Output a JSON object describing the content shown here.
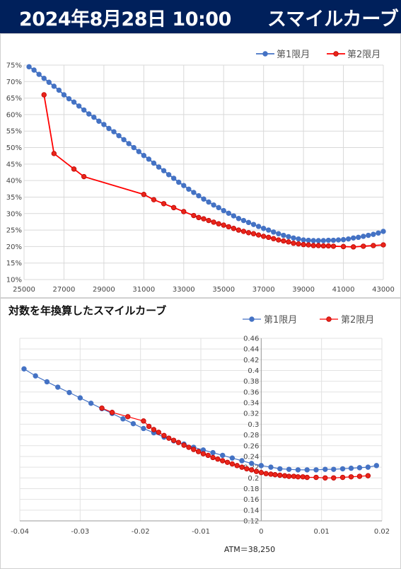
{
  "header": {
    "datetime": "2024年8月28日 10:00",
    "title": "スマイルカーブ"
  },
  "colors": {
    "banner": "#00205b",
    "series1": "#4472c4",
    "series2": "#ff0000",
    "series2_marker": "#e8251a"
  },
  "chart_data": [
    {
      "type": "line",
      "title": "",
      "xlim": [
        25000,
        43000
      ],
      "ylim": [
        10,
        75
      ],
      "x_ticks": [
        "25000",
        "27000",
        "29000",
        "31000",
        "33000",
        "35000",
        "37000",
        "39000",
        "41000",
        "43000"
      ],
      "y_ticks": [
        "10%",
        "15%",
        "20%",
        "25%",
        "30%",
        "35%",
        "40%",
        "45%",
        "50%",
        "55%",
        "60%",
        "65%",
        "70%",
        "75%"
      ],
      "legend": {
        "placement": "top-right"
      },
      "series": [
        {
          "name": "第1限月",
          "x": [
            25250,
            25500,
            25750,
            26000,
            26250,
            26500,
            26750,
            27000,
            27250,
            27500,
            27750,
            28000,
            28250,
            28500,
            28750,
            29000,
            29250,
            29500,
            29750,
            30000,
            30250,
            30500,
            30750,
            31000,
            31250,
            31500,
            31750,
            32000,
            32250,
            32500,
            32750,
            33000,
            33250,
            33500,
            33750,
            34000,
            34250,
            34500,
            34750,
            35000,
            35250,
            35500,
            35750,
            36000,
            36250,
            36500,
            36750,
            37000,
            37250,
            37500,
            37750,
            38000,
            38250,
            38500,
            38750,
            39000,
            39250,
            39500,
            39750,
            40000,
            40250,
            40500,
            40750,
            41000,
            41250,
            41500,
            41750,
            42000,
            42250,
            42500,
            42750,
            43000
          ],
          "y": [
            74.5,
            73.5,
            72.2,
            71.0,
            69.8,
            68.6,
            67.4,
            66.0,
            64.8,
            63.8,
            62.6,
            61.4,
            60.2,
            59.2,
            58.0,
            57.0,
            55.8,
            54.8,
            53.6,
            52.4,
            51.2,
            50.0,
            48.8,
            47.6,
            46.5,
            45.3,
            44.1,
            43.0,
            41.8,
            40.7,
            39.5,
            38.5,
            37.4,
            36.4,
            35.4,
            34.4,
            33.5,
            32.6,
            31.8,
            30.9,
            30.1,
            29.3,
            28.5,
            27.9,
            27.3,
            26.7,
            26.1,
            25.5,
            25.0,
            24.4,
            23.9,
            23.4,
            23.0,
            22.6,
            22.3,
            22.0,
            21.9,
            21.8,
            21.8,
            21.8,
            21.9,
            21.9,
            22.0,
            22.1,
            22.3,
            22.6,
            22.8,
            23.1,
            23.4,
            23.7,
            24.1,
            24.6
          ]
        },
        {
          "name": "第2限月",
          "x": [
            26000,
            26500,
            27500,
            28000,
            31000,
            31500,
            32000,
            32500,
            33000,
            33500,
            33750,
            34000,
            34250,
            34500,
            34750,
            35000,
            35250,
            35500,
            35750,
            36000,
            36250,
            36500,
            36750,
            37000,
            37250,
            37500,
            37750,
            38000,
            38250,
            38500,
            38750,
            39000,
            39250,
            39500,
            39750,
            40000,
            40250,
            40500,
            41000,
            41500,
            42000,
            42500,
            43000
          ],
          "y": [
            66.0,
            48.2,
            43.5,
            41.2,
            35.8,
            34.2,
            33.0,
            31.8,
            30.6,
            29.4,
            28.8,
            28.4,
            27.9,
            27.4,
            26.9,
            26.5,
            26.0,
            25.5,
            25.0,
            24.6,
            24.2,
            23.9,
            23.5,
            23.1,
            22.8,
            22.4,
            22.0,
            21.7,
            21.4,
            21.0,
            20.8,
            20.6,
            20.5,
            20.3,
            20.3,
            20.2,
            20.2,
            20.1,
            20.0,
            19.9,
            20.1,
            20.3,
            20.5
          ]
        }
      ]
    },
    {
      "type": "line",
      "title": "対数を年換算したスマイルカーブ",
      "xlim": [
        -0.04,
        0.02
      ],
      "ylim": [
        0.12,
        0.46
      ],
      "x_ticks": [
        "-0.04",
        "-0.03",
        "-0.02",
        "-0.01",
        "0",
        "0.01",
        "0.02"
      ],
      "y_ticks": [
        "0.12",
        "0.14",
        "0.16",
        "0.18",
        "0.2",
        "0.22",
        "0.24",
        "0.26",
        "0.28",
        "0.3",
        "0.32",
        "0.34",
        "0.36",
        "0.38",
        "0.4",
        "0.42",
        "0.44",
        "0.46"
      ],
      "legend": {
        "placement": "top-right"
      },
      "annotation": "ATM＝38,250",
      "series": [
        {
          "name": "第1限月",
          "x": [
            -0.0393,
            -0.0374,
            -0.0355,
            -0.0337,
            -0.0318,
            -0.03,
            -0.0282,
            -0.0264,
            -0.0247,
            -0.0229,
            -0.0212,
            -0.0195,
            -0.0178,
            -0.0161,
            -0.0145,
            -0.0128,
            -0.0112,
            -0.0096,
            -0.008,
            -0.0064,
            -0.0048,
            -0.0032,
            -0.0016,
            0.0,
            0.0016,
            0.0031,
            0.0046,
            0.0061,
            0.0076,
            0.0091,
            0.0106,
            0.012,
            0.0135,
            0.0149,
            0.0163,
            0.0177,
            0.0191
          ],
          "y": [
            0.403,
            0.39,
            0.379,
            0.369,
            0.359,
            0.349,
            0.339,
            0.329,
            0.32,
            0.31,
            0.301,
            0.292,
            0.284,
            0.276,
            0.269,
            0.263,
            0.257,
            0.252,
            0.247,
            0.242,
            0.237,
            0.232,
            0.227,
            0.223,
            0.22,
            0.217,
            0.216,
            0.215,
            0.215,
            0.215,
            0.216,
            0.216,
            0.217,
            0.218,
            0.219,
            0.22,
            0.223
          ]
        },
        {
          "name": "第2限月",
          "x": [
            -0.0264,
            -0.0247,
            -0.0221,
            -0.0195,
            -0.0186,
            -0.0178,
            -0.017,
            -0.0161,
            -0.0153,
            -0.0145,
            -0.0137,
            -0.0128,
            -0.012,
            -0.0112,
            -0.0104,
            -0.0096,
            -0.0088,
            -0.008,
            -0.0072,
            -0.0064,
            -0.0056,
            -0.0048,
            -0.004,
            -0.0032,
            -0.0024,
            -0.0016,
            -0.0008,
            0.0,
            0.0008,
            0.0016,
            0.0023,
            0.0031,
            0.0039,
            0.0046,
            0.0054,
            0.0061,
            0.0069,
            0.0076,
            0.0091,
            0.0106,
            0.012,
            0.0135,
            0.0149,
            0.0163,
            0.0177
          ],
          "y": [
            0.33,
            0.322,
            0.314,
            0.306,
            0.296,
            0.29,
            0.285,
            0.279,
            0.274,
            0.27,
            0.266,
            0.261,
            0.257,
            0.253,
            0.249,
            0.245,
            0.242,
            0.238,
            0.235,
            0.232,
            0.229,
            0.226,
            0.223,
            0.22,
            0.217,
            0.215,
            0.212,
            0.21,
            0.208,
            0.207,
            0.206,
            0.205,
            0.204,
            0.203,
            0.203,
            0.202,
            0.202,
            0.201,
            0.201,
            0.2,
            0.2,
            0.201,
            0.202,
            0.203,
            0.204
          ]
        }
      ]
    }
  ]
}
